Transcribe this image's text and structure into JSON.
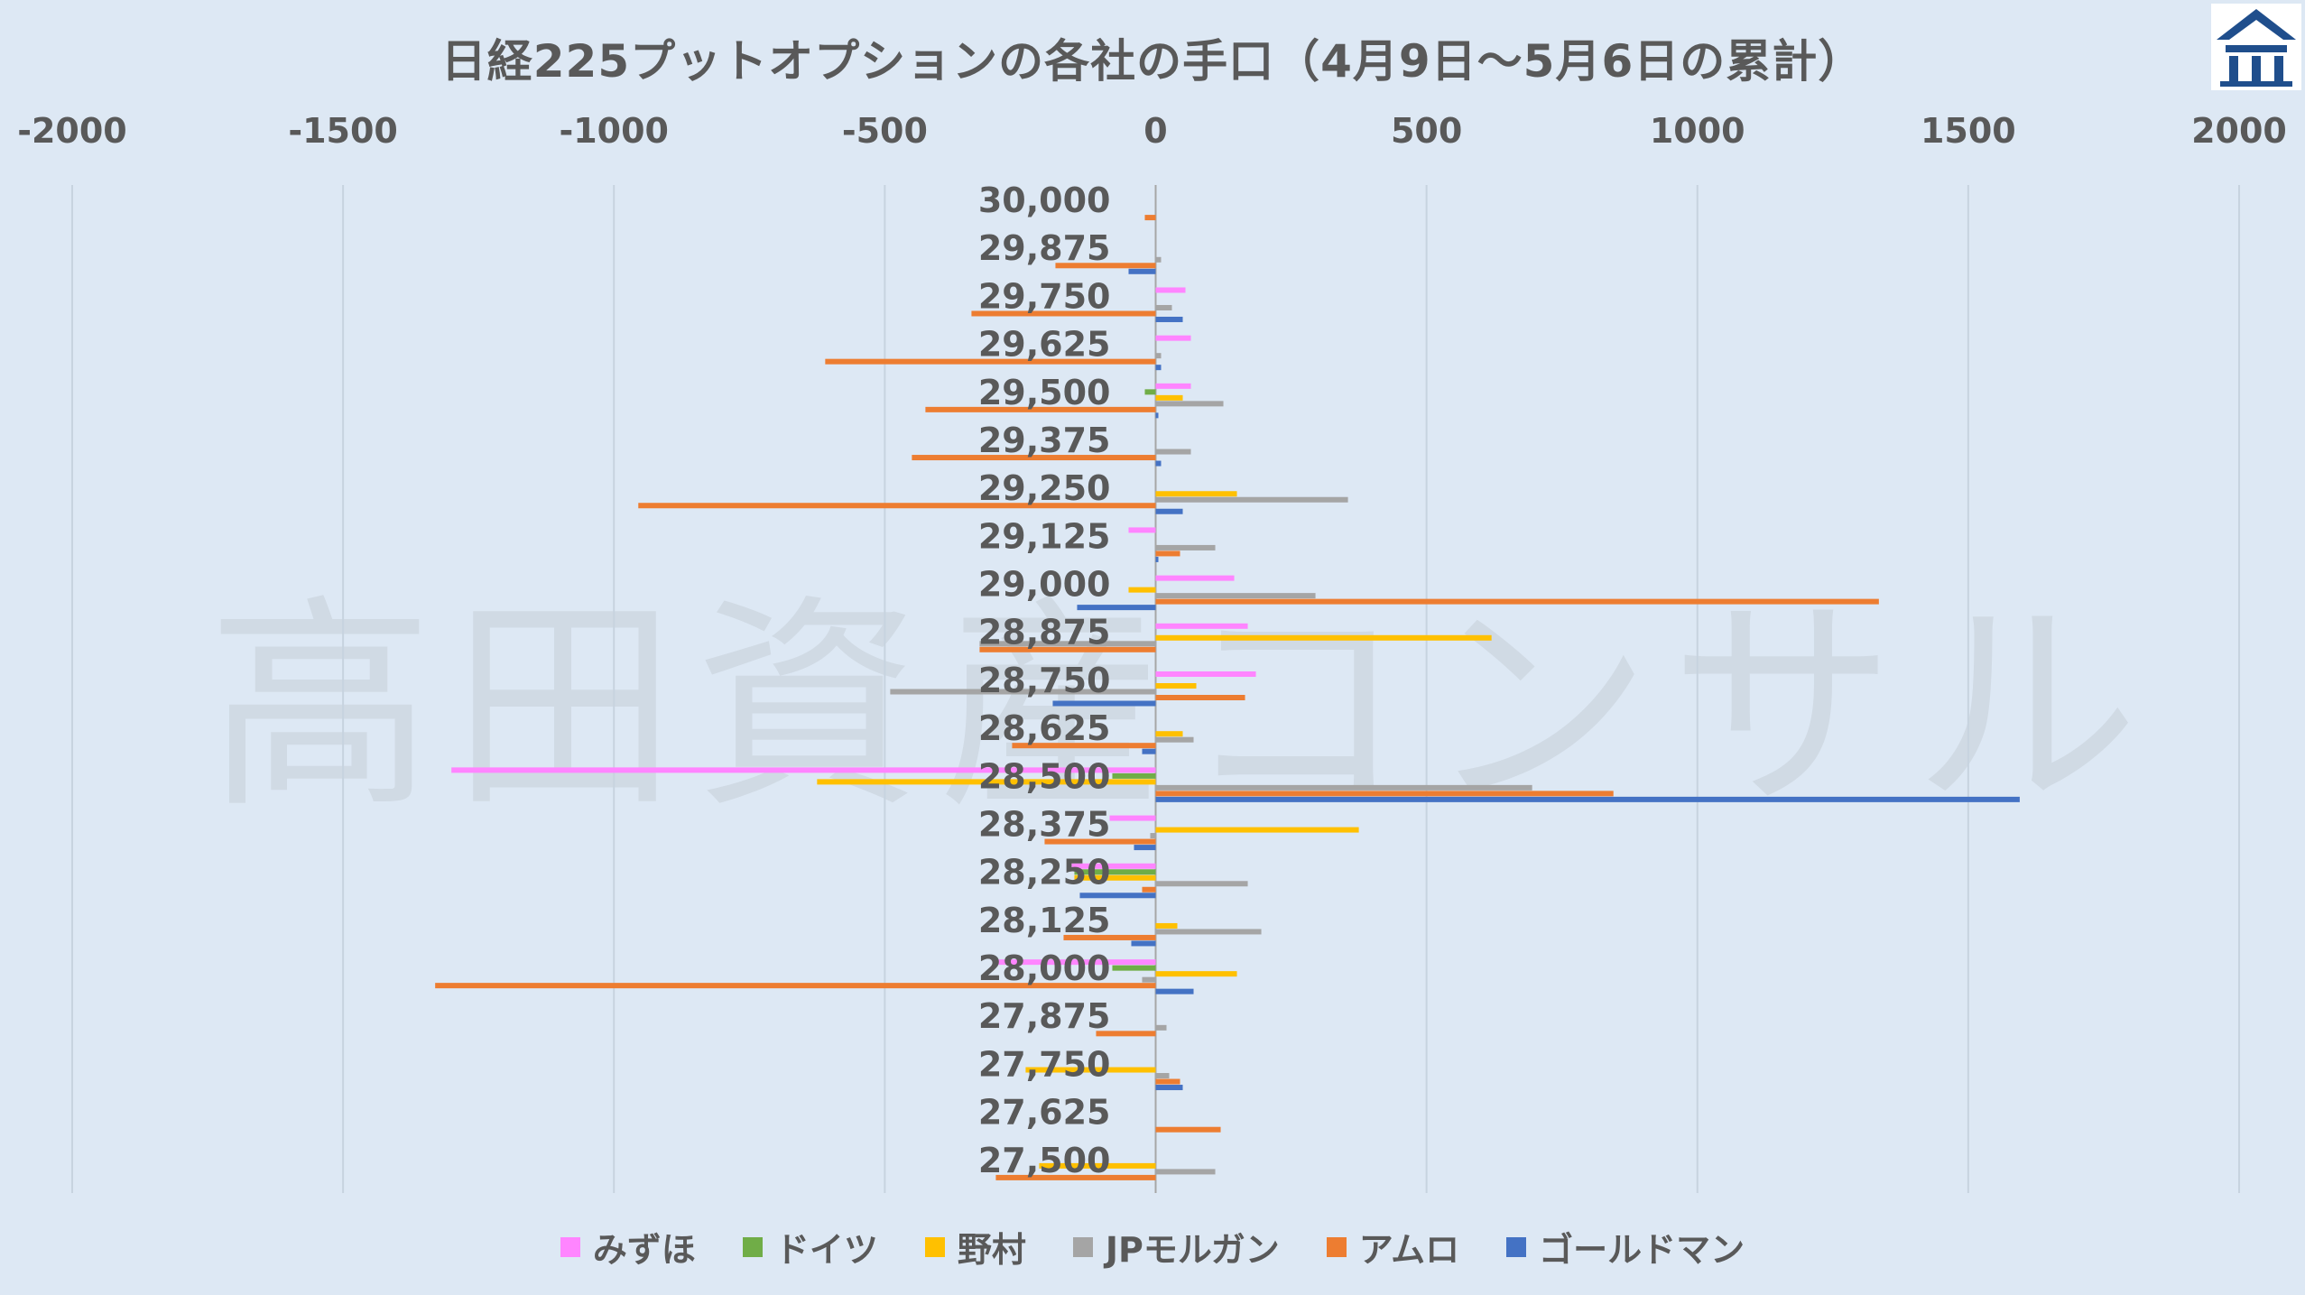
{
  "title": "日経225プットオプションの各社の手口（4月9日～5月6日の累計）",
  "watermark": "高田資産コンサル",
  "colors": {
    "background": "#dde8f4",
    "grid": "#c7d3df",
    "axis": "#a6a6a6",
    "text": "#595959",
    "logo": "#1f4e8c"
  },
  "chart_data": {
    "type": "bar",
    "orientation": "horizontal",
    "xlim": [
      -2000,
      2000
    ],
    "x_ticks": [
      "-2000",
      "-1500",
      "-1000",
      "-500",
      "0",
      "500",
      "1000",
      "1500",
      "2000"
    ],
    "x_tick_values": [
      -2000,
      -1500,
      -1000,
      -500,
      0,
      500,
      1000,
      1500,
      2000
    ],
    "grid": true,
    "legend_position": "bottom",
    "categories": [
      "30,000",
      "29,875",
      "29,750",
      "29,625",
      "29,500",
      "29,375",
      "29,250",
      "29,125",
      "29,000",
      "28,875",
      "28,750",
      "28,625",
      "28,500",
      "28,375",
      "28,250",
      "28,125",
      "28,000",
      "27,875",
      "27,750",
      "27,625",
      "27,500"
    ],
    "series": [
      {
        "name": "みずほ",
        "color": "#ff85ff",
        "values": [
          0,
          0,
          55,
          65,
          65,
          0,
          0,
          -50,
          145,
          170,
          185,
          0,
          -1300,
          -85,
          -155,
          0,
          -290,
          0,
          0,
          0,
          0
        ]
      },
      {
        "name": "ドイツ",
        "color": "#70ad47",
        "values": [
          0,
          0,
          0,
          0,
          -20,
          0,
          0,
          0,
          0,
          0,
          0,
          0,
          -80,
          0,
          -150,
          0,
          -80,
          0,
          0,
          0,
          0
        ]
      },
      {
        "name": "野村",
        "color": "#ffc000",
        "values": [
          0,
          0,
          0,
          0,
          50,
          0,
          150,
          0,
          -50,
          620,
          75,
          50,
          -625,
          375,
          -150,
          40,
          150,
          0,
          -240,
          0,
          -215
        ]
      },
      {
        "name": "JPモルガン",
        "color": "#a5a5a5",
        "values": [
          0,
          10,
          30,
          10,
          125,
          65,
          355,
          110,
          295,
          -325,
          -490,
          70,
          695,
          -10,
          170,
          195,
          -25,
          20,
          25,
          0,
          110
        ]
      },
      {
        "name": "アムロ",
        "color": "#ed7d31",
        "values": [
          -20,
          -185,
          -340,
          -610,
          -425,
          -450,
          -955,
          45,
          1335,
          -325,
          165,
          -265,
          845,
          -205,
          -25,
          -170,
          -1330,
          -110,
          45,
          120,
          -295
        ]
      },
      {
        "name": "ゴールドマン",
        "color": "#4472c4",
        "values": [
          0,
          -50,
          50,
          10,
          5,
          10,
          50,
          5,
          -145,
          0,
          -190,
          -25,
          1595,
          -40,
          -140,
          -45,
          70,
          0,
          50,
          0,
          0
        ]
      }
    ]
  }
}
